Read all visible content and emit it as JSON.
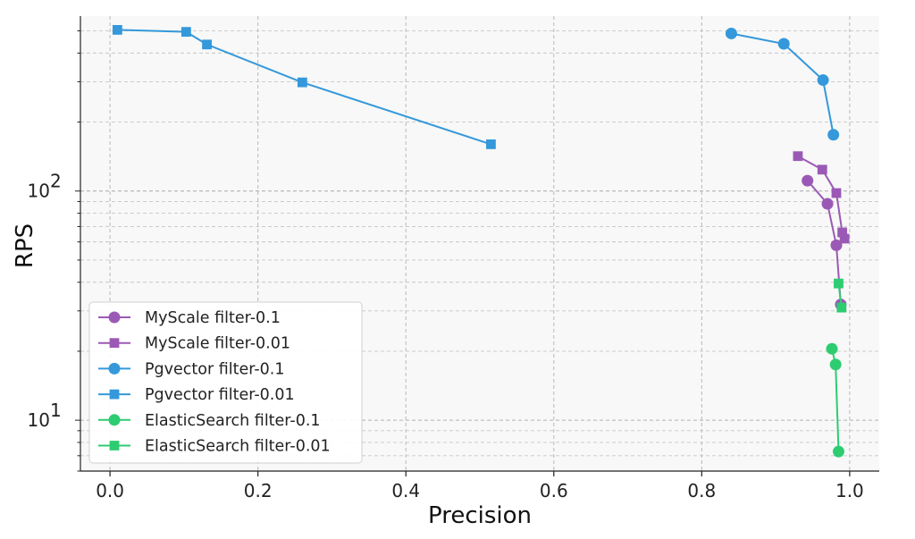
{
  "chart_data": {
    "type": "scatter",
    "xlabel": "Precision",
    "ylabel": "RPS",
    "xlim": [
      -0.04,
      1.04
    ],
    "ylim": [
      6.0,
      580
    ],
    "yscale": "log",
    "grid": true,
    "legend_position": "lower-left",
    "x_ticks": [
      {
        "value": 0.0,
        "label": "0.0"
      },
      {
        "value": 0.2,
        "label": "0.2"
      },
      {
        "value": 0.4,
        "label": "0.4"
      },
      {
        "value": 0.6,
        "label": "0.6"
      },
      {
        "value": 0.8,
        "label": "0.8"
      },
      {
        "value": 1.0,
        "label": "1.0"
      }
    ],
    "y_ticks": [
      {
        "value": 10,
        "base": "10",
        "exp": "1"
      },
      {
        "value": 100,
        "base": "10",
        "exp": "2"
      }
    ],
    "series": [
      {
        "name": "MyScale filter-0.1",
        "color": "#9b59b6",
        "marker": "circle",
        "x": [
          0.943,
          0.97,
          0.982,
          0.988
        ],
        "y": [
          111,
          88,
          58,
          32
        ]
      },
      {
        "name": "MyScale filter-0.01",
        "color": "#9b59b6",
        "marker": "square",
        "x": [
          0.93,
          0.963,
          0.982,
          0.99,
          0.993
        ],
        "y": [
          142,
          124,
          98,
          66,
          62
        ]
      },
      {
        "name": "Pgvector filter-0.1",
        "color": "#3498db",
        "marker": "circle",
        "x": [
          0.84,
          0.911,
          0.964,
          0.978
        ],
        "y": [
          487,
          439,
          305,
          176
        ]
      },
      {
        "name": "Pgvector filter-0.01",
        "color": "#3498db",
        "marker": "square",
        "x": [
          0.01,
          0.103,
          0.131,
          0.26,
          0.515
        ],
        "y": [
          505,
          495,
          436,
          298,
          160
        ]
      },
      {
        "name": "ElasticSearch filter-0.1",
        "color": "#2ecc71",
        "marker": "circle",
        "x": [
          0.976,
          0.981,
          0.985
        ],
        "y": [
          20.5,
          17.5,
          7.3
        ]
      },
      {
        "name": "ElasticSearch filter-0.01",
        "color": "#2ecc71",
        "marker": "square",
        "x": [
          0.985,
          0.989
        ],
        "y": [
          39.5,
          31
        ]
      }
    ]
  }
}
